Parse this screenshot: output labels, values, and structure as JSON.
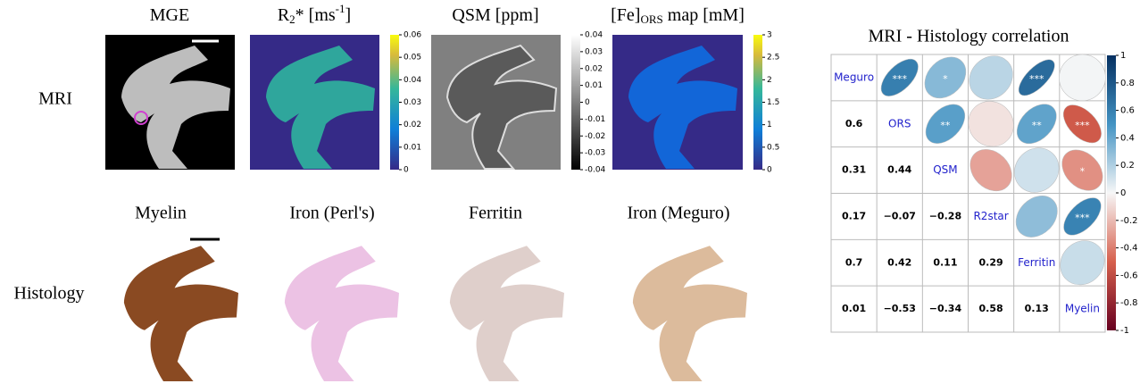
{
  "row_labels": {
    "mri": "MRI",
    "histology": "Histology"
  },
  "mri_panels": [
    {
      "title_parts": [
        "MGE"
      ]
    },
    {
      "title_parts": [
        "R",
        "2",
        "* [ms",
        "-1",
        "]"
      ],
      "colorbar": {
        "lim": [
          0,
          0.06
        ],
        "ticks": [
          0,
          0.01,
          0.02,
          0.03,
          0.04,
          0.05,
          0.06
        ]
      }
    },
    {
      "title_parts": [
        "QSM [ppm]"
      ],
      "colorbar": {
        "lim": [
          -0.04,
          0.04
        ],
        "ticks": [
          -0.04,
          -0.03,
          -0.02,
          -0.01,
          0,
          0.01,
          0.02,
          0.03,
          0.04
        ]
      }
    },
    {
      "title_parts": [
        "[Fe]",
        "ORS",
        " map [mM]"
      ],
      "colorbar": {
        "lim": [
          0,
          3
        ],
        "ticks": [
          0,
          0.5,
          1,
          1.5,
          2,
          2.5,
          3
        ]
      }
    }
  ],
  "histology_panels": [
    {
      "title": "Myelin"
    },
    {
      "title": "Iron (Perl's)"
    },
    {
      "title": "Ferritin"
    },
    {
      "title": "Iron (Meguro)"
    }
  ],
  "correlation": {
    "title": "MRI - Histology correlation",
    "variables": [
      "Meguro",
      "ORS",
      "QSM",
      "R2star",
      "Ferritin",
      "Myelin"
    ],
    "values": [
      [],
      [
        0.6
      ],
      [
        0.31,
        0.44
      ],
      [
        0.17,
        -0.07,
        -0.28
      ],
      [
        0.7,
        0.42,
        0.11,
        0.29
      ],
      [
        0.01,
        -0.53,
        -0.34,
        0.58,
        0.13
      ]
    ],
    "value_labels": [
      [],
      [
        "0.6"
      ],
      [
        "0.31",
        "0.44"
      ],
      [
        "0.17",
        "−0.07",
        "−0.28"
      ],
      [
        "0.7",
        "0.42",
        "0.11",
        "0.29"
      ],
      [
        "0.01",
        "−0.53",
        "−0.34",
        "0.58",
        "0.13"
      ]
    ],
    "stars": [
      [],
      [
        "***"
      ],
      [
        "*",
        "**"
      ],
      [
        null,
        null,
        null
      ],
      [
        "***",
        "**",
        null,
        null
      ],
      [
        null,
        "***",
        "*",
        "***",
        null
      ]
    ],
    "colorbar": {
      "lim": [
        -1,
        1
      ],
      "ticks": [
        1,
        0.8,
        0.6,
        0.4,
        0.2,
        0,
        -0.2,
        -0.4,
        -0.6,
        -0.8,
        -1
      ]
    }
  }
}
